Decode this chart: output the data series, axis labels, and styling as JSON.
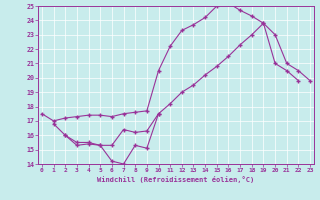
{
  "xlabel": "Windchill (Refroidissement éolien,°C)",
  "bg_color": "#c8ecec",
  "line_color": "#993399",
  "grid_color": "#aacccc",
  "xmin": 0,
  "xmax": 23,
  "ymin": 14,
  "ymax": 25,
  "line1_x": [
    0,
    1,
    2,
    3,
    4,
    5,
    6,
    7,
    8,
    9,
    10,
    11,
    12,
    13,
    14,
    15,
    16,
    17,
    18,
    19,
    20,
    21,
    22
  ],
  "line1_y": [
    17.5,
    17.0,
    17.2,
    17.3,
    17.4,
    17.4,
    17.3,
    17.5,
    17.6,
    17.7,
    20.5,
    22.2,
    23.3,
    23.7,
    24.2,
    25.0,
    25.2,
    24.7,
    24.3,
    23.8,
    21.0,
    20.5,
    19.8
  ],
  "line2_x": [
    2,
    3,
    4,
    5,
    6,
    7,
    8,
    9,
    10
  ],
  "line2_y": [
    16.0,
    15.3,
    15.4,
    15.3,
    14.2,
    14.0,
    15.3,
    15.1,
    17.5
  ],
  "line3_x": [
    1,
    2,
    3,
    4,
    5,
    6,
    7,
    8,
    9,
    10,
    11,
    12,
    13,
    14,
    15,
    16,
    17,
    18,
    19,
    20,
    21,
    22,
    23
  ],
  "line3_y": [
    16.8,
    16.0,
    15.5,
    15.5,
    15.3,
    15.3,
    16.4,
    16.2,
    16.3,
    17.5,
    18.2,
    19.0,
    19.5,
    20.2,
    20.8,
    21.5,
    22.3,
    23.0,
    23.8,
    23.0,
    21.0,
    20.5,
    19.8
  ]
}
